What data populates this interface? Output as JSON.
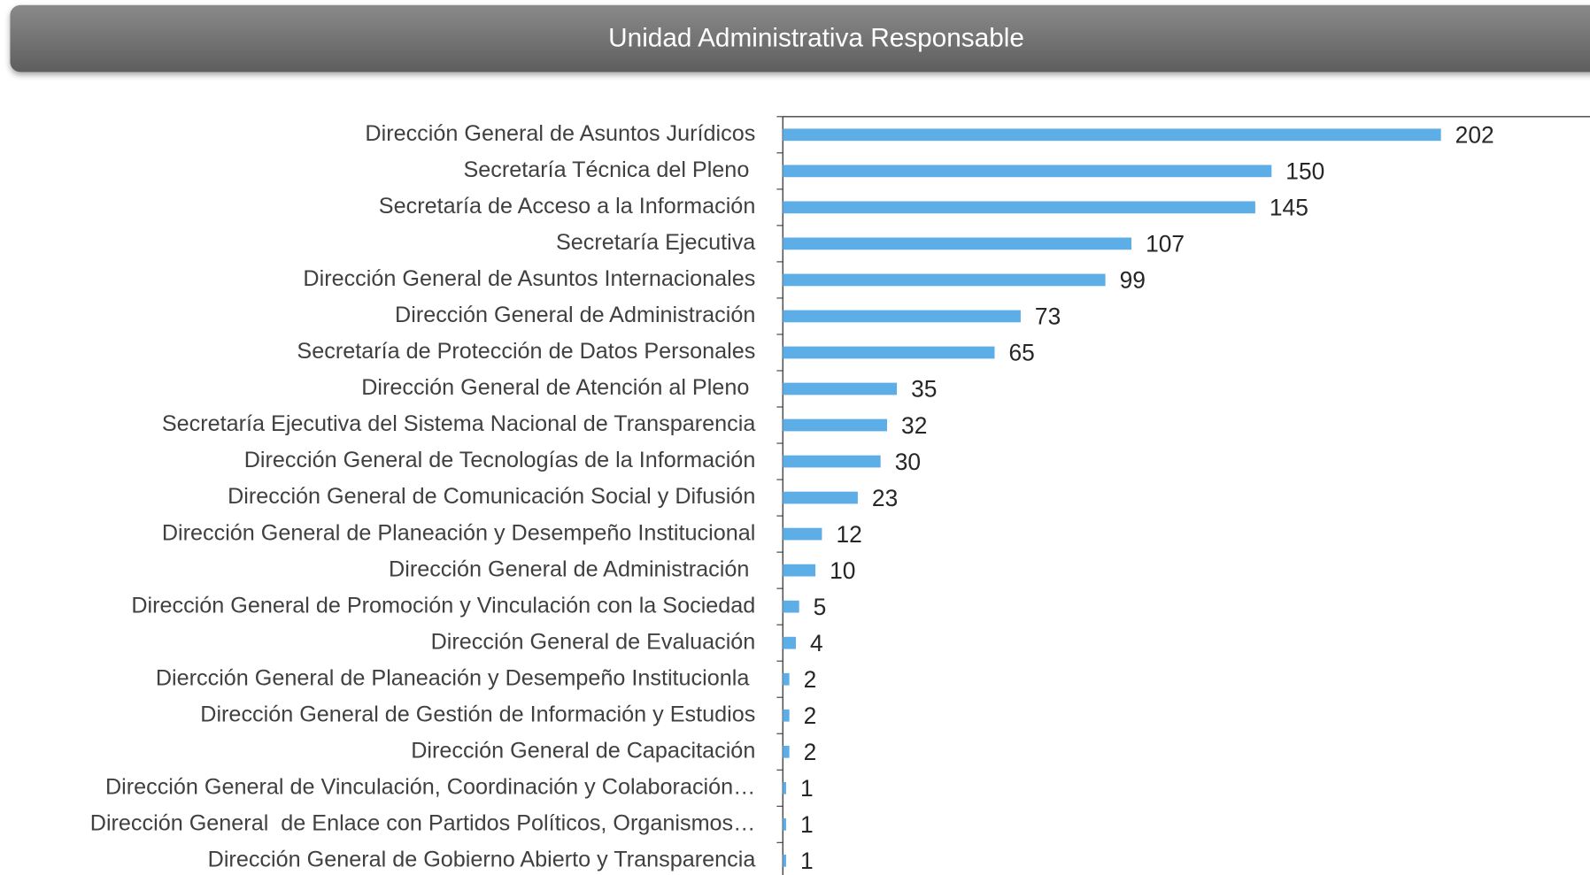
{
  "chart_data": {
    "type": "barh",
    "title": "Unidad Administrativa Responsable",
    "categories": [
      "Dirección General de Asuntos Jurídicos",
      "Secretaría Técnica del Pleno ",
      "Secretaría de Acceso a la Información",
      "Secretaría Ejecutiva",
      "Dirección General de Asuntos Internacionales",
      "Dirección General de Administración",
      "Secretaría de Protección de Datos Personales",
      "Dirección General de Atención al Pleno ",
      "Secretaría Ejecutiva del Sistema Nacional de Transparencia",
      "Dirección General de Tecnologías de la Información",
      "Dirección General de Comunicación Social y Difusión",
      "Dirección General de Planeación y Desempeño Institucional",
      "Dirección General de Administración ",
      "Dirección General de Promoción y Vinculación con la Sociedad",
      "Dirección General de Evaluación",
      "Diercción General de Planeación y Desempeño Institucionla ",
      "Dirección General de Gestión de Información y Estudios",
      "Dirección General de Capacitación",
      "Dirección General de Vinculación, Coordinación y Colaboración…",
      "Dirección General  de Enlace con Partidos Políticos, Organismos…",
      "Dirección General de Gobierno Abierto y Transparencia"
    ],
    "values": [
      202,
      150,
      145,
      107,
      99,
      73,
      65,
      35,
      32,
      30,
      23,
      12,
      10,
      5,
      4,
      2,
      2,
      2,
      1,
      1,
      1
    ],
    "color": "#5dade6"
  }
}
